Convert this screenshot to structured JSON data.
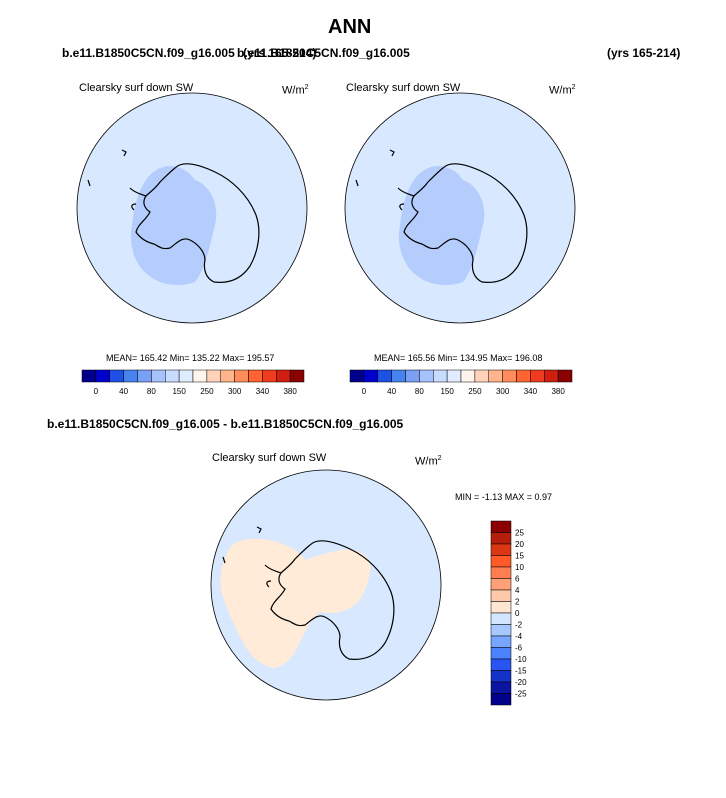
{
  "title": "ANN",
  "panel_left": {
    "case": "b.e11.B1850C5CN.f09_g16.005",
    "years": "(yrs 165-214)",
    "label": "Clearsky surf down SW",
    "units": "W/m",
    "units_exp": "2",
    "stats": "MEAN= 165.42  Min= 135.22  Max= 195.57"
  },
  "panel_right": {
    "case": "b.e11.B1850C5CN.f09_g16.005",
    "years": "(yrs 165-214)",
    "label": "Clearsky surf down SW",
    "units": "W/m",
    "units_exp": "2",
    "stats": "MEAN= 165.56  Min= 134.95  Max= 196.08"
  },
  "panel_diff": {
    "case": "b.e11.B1850C5CN.f09_g16.005 - b.e11.B1850C5CN.f09_g16.005",
    "label": "Clearsky surf down SW",
    "units": "W/m",
    "units_exp": "2",
    "stats": "MIN =  -1.13 MAX =   0.97"
  },
  "colorbar_main": {
    "labels": [
      "0",
      "40",
      "80",
      "150",
      "250",
      "300",
      "340",
      "380"
    ],
    "colors": [
      "#00008b",
      "#0000cd",
      "#1e50e6",
      "#4682f0",
      "#78a0f5",
      "#a5c3fa",
      "#c8dcff",
      "#e1ecff",
      "#fff5eb",
      "#ffd2b9",
      "#ffb48c",
      "#ff8c5a",
      "#ff6432",
      "#f03c1e",
      "#d21e0f",
      "#8b0000"
    ]
  },
  "colorbar_diff": {
    "labels": [
      "25",
      "20",
      "15",
      "10",
      "6",
      "4",
      "2",
      "0",
      "-2",
      "-4",
      "-6",
      "-10",
      "-15",
      "-20",
      "-25"
    ],
    "colors": [
      "#8b0000",
      "#b41e0a",
      "#dc3714",
      "#ff5a28",
      "#ff7d50",
      "#ffa078",
      "#ffc8aa",
      "#ffe6d2",
      "#d2e6ff",
      "#a5c8ff",
      "#78a5ff",
      "#4b82ff",
      "#2855f0",
      "#1432c8",
      "#0a14a0",
      "#00008b"
    ]
  },
  "map_colors": {
    "ocean_main": "#d7e8ff",
    "high_main": "#b4cdfc",
    "ocean_diff": "#d7e8ff",
    "pos_diff": "#ffebd7"
  }
}
